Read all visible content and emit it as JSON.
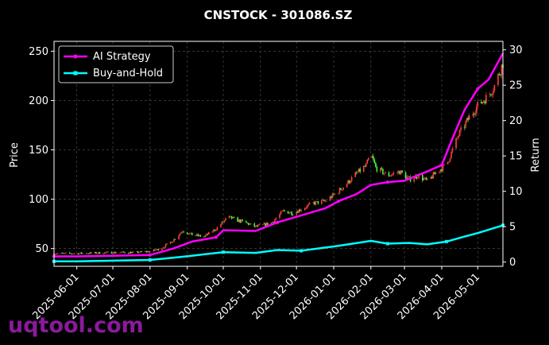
{
  "chart_data": {
    "type": "line",
    "title": "CNSTOCK - 301086.SZ",
    "xlabel": "",
    "ylabel": "Price",
    "y2label": "Return",
    "x_ticks": [
      "2025-06-01",
      "2025-07-01",
      "2025-08-01",
      "2025-09-01",
      "2025-10-01",
      "2025-11-01",
      "2025-12-01",
      "2026-01-01",
      "2026-02-01",
      "2026-03-01",
      "2026-04-01",
      "2026-05-01"
    ],
    "xlim": [
      "2025-05-13",
      "2026-05-22"
    ],
    "ylim": [
      32,
      260
    ],
    "y_ticks": [
      50,
      100,
      150,
      200,
      250
    ],
    "y2lim": [
      -0.6,
      31.2
    ],
    "y2_ticks": [
      0,
      5,
      10,
      15,
      20,
      25,
      30
    ],
    "grid": true,
    "legend_position": "top-left",
    "colors": {
      "ai": "#ff00ff",
      "bh": "#00ffff",
      "up": "#ff4040",
      "down": "#40ff40"
    },
    "candles": [
      [
        "2025-05-13",
        45
      ],
      [
        "2025-06-01",
        45
      ],
      [
        "2025-07-01",
        46
      ],
      [
        "2025-07-20",
        46
      ],
      [
        "2025-08-01",
        47
      ],
      [
        "2025-08-10",
        50
      ],
      [
        "2025-08-20",
        58
      ],
      [
        "2025-08-28",
        68
      ],
      [
        "2025-09-05",
        64
      ],
      [
        "2025-09-15",
        62
      ],
      [
        "2025-09-25",
        70
      ],
      [
        "2025-10-05",
        82
      ],
      [
        "2025-10-12",
        79
      ],
      [
        "2025-10-20",
        76
      ],
      [
        "2025-10-28",
        72
      ],
      [
        "2025-11-10",
        76
      ],
      [
        "2025-11-20",
        88
      ],
      [
        "2025-11-28",
        86
      ],
      [
        "2025-12-05",
        90
      ],
      [
        "2025-12-15",
        96
      ],
      [
        "2025-12-25",
        98
      ],
      [
        "2026-01-05",
        108
      ],
      [
        "2026-01-12",
        116
      ],
      [
        "2026-01-20",
        126
      ],
      [
        "2026-01-28",
        134
      ],
      [
        "2026-02-01",
        146
      ],
      [
        "2026-02-05",
        132
      ],
      [
        "2026-02-15",
        124
      ],
      [
        "2026-02-25",
        128
      ],
      [
        "2026-03-05",
        120
      ],
      [
        "2026-03-12",
        124
      ],
      [
        "2026-03-20",
        118
      ],
      [
        "2026-03-28",
        128
      ],
      [
        "2026-04-05",
        135
      ],
      [
        "2026-04-15",
        165
      ],
      [
        "2026-04-25",
        185
      ],
      [
        "2026-05-01",
        195
      ],
      [
        "2026-05-10",
        205
      ],
      [
        "2026-05-15",
        215
      ],
      [
        "2026-05-22",
        238
      ]
    ],
    "series": [
      {
        "name": "AI Strategy",
        "x": [
          "2025-05-13",
          "2025-06-01",
          "2025-07-01",
          "2025-08-01",
          "2025-08-20",
          "2025-09-05",
          "2025-09-25",
          "2025-10-01",
          "2025-10-28",
          "2025-11-15",
          "2025-12-05",
          "2025-12-25",
          "2026-01-05",
          "2026-01-20",
          "2026-02-01",
          "2026-02-15",
          "2026-03-01",
          "2026-03-20",
          "2026-04-01",
          "2026-04-10",
          "2026-04-20",
          "2026-05-01",
          "2026-05-10",
          "2026-05-22"
        ],
        "values": [
          0.8,
          0.8,
          0.9,
          1.0,
          1.9,
          2.9,
          3.5,
          4.5,
          4.4,
          5.6,
          6.6,
          7.6,
          8.6,
          9.6,
          10.9,
          11.3,
          11.5,
          12.8,
          13.7,
          17.5,
          21.5,
          24.5,
          25.8,
          29.5
        ]
      },
      {
        "name": "Buy-and-Hold",
        "x": [
          "2025-05-13",
          "2025-06-01",
          "2025-07-01",
          "2025-08-01",
          "2025-08-20",
          "2025-09-05",
          "2025-10-01",
          "2025-10-28",
          "2025-11-15",
          "2025-12-05",
          "2026-01-05",
          "2026-02-01",
          "2026-02-15",
          "2026-03-05",
          "2026-03-20",
          "2026-04-05",
          "2026-04-20",
          "2026-05-01",
          "2026-05-22"
        ],
        "values": [
          0.1,
          0.1,
          0.2,
          0.3,
          0.6,
          0.9,
          1.4,
          1.3,
          1.7,
          1.6,
          2.3,
          3.0,
          2.6,
          2.7,
          2.5,
          2.9,
          3.6,
          4.1,
          5.2
        ]
      }
    ]
  },
  "watermark": "uqtool.com"
}
